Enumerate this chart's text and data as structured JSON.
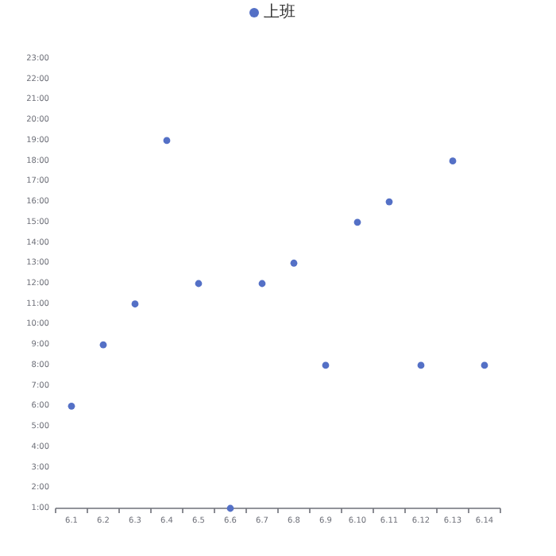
{
  "chart_data": {
    "type": "scatter",
    "categories": [
      "6.1",
      "6.2",
      "6.3",
      "6.4",
      "6.5",
      "6.6",
      "6.7",
      "6.8",
      "6.9",
      "6.10",
      "6.11",
      "6.12",
      "6.13",
      "6.14"
    ],
    "series": [
      {
        "name": "上班",
        "color": "#5470c6",
        "values": [
          6,
          9,
          11,
          19,
          12,
          1,
          12,
          13,
          8,
          15,
          16,
          8,
          18,
          8
        ]
      }
    ],
    "ylim": [
      1,
      23
    ],
    "yticks": [
      {
        "value": 1,
        "label": "1:00"
      },
      {
        "value": 2,
        "label": "2:00"
      },
      {
        "value": 3,
        "label": "3:00"
      },
      {
        "value": 4,
        "label": "4:00"
      },
      {
        "value": 5,
        "label": "5:00"
      },
      {
        "value": 6,
        "label": "6:00"
      },
      {
        "value": 7,
        "label": "7:00"
      },
      {
        "value": 8,
        "label": "8:00"
      },
      {
        "value": 9,
        "label": "9:00"
      },
      {
        "value": 10,
        "label": "10:00"
      },
      {
        "value": 11,
        "label": "11:00"
      },
      {
        "value": 12,
        "label": "12:00"
      },
      {
        "value": 13,
        "label": "13:00"
      },
      {
        "value": 14,
        "label": "14:00"
      },
      {
        "value": 15,
        "label": "15:00"
      },
      {
        "value": 16,
        "label": "16:00"
      },
      {
        "value": 17,
        "label": "17:00"
      },
      {
        "value": 18,
        "label": "18:00"
      },
      {
        "value": 19,
        "label": "19:00"
      },
      {
        "value": 20,
        "label": "20:00"
      },
      {
        "value": 21,
        "label": "21:00"
      },
      {
        "value": 22,
        "label": "22:00"
      },
      {
        "value": 23,
        "label": "23:00"
      }
    ],
    "legend": "top",
    "marker": "circle",
    "grid": false
  }
}
